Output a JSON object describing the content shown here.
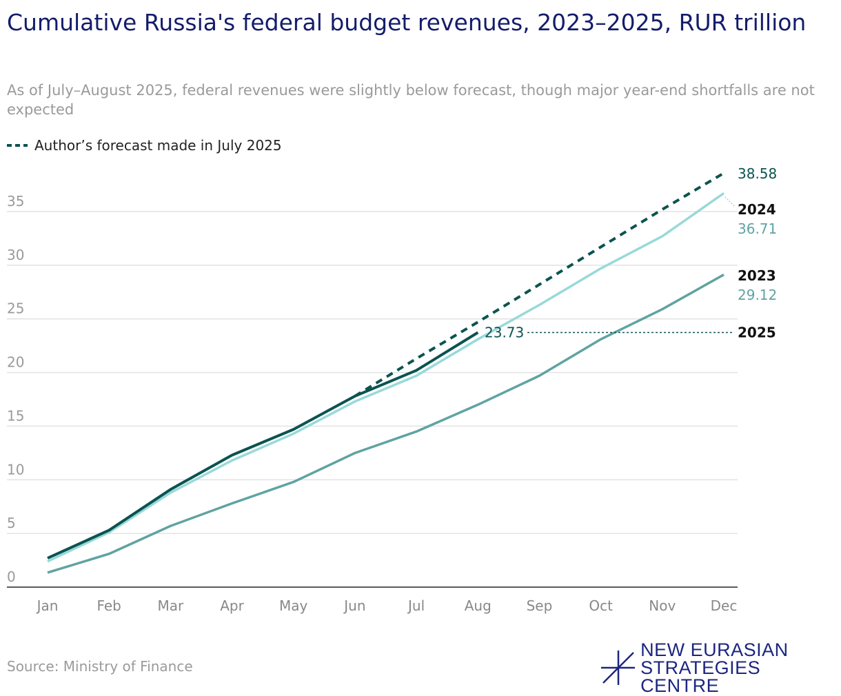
{
  "title": "Cumulative Russia's federal budget revenues, 2023–2025, RUR trillion",
  "subtitle": "As of July–August 2025, federal revenues were slightly below forecast, though major year-end shortfalls are not expected",
  "legend_label": "Author’s forecast made in July 2025",
  "source": "Source: Ministry of Finance",
  "logo": {
    "line1": "NEW EURASIAN",
    "line2": "STRATEGIES CENTRE"
  },
  "colors": {
    "s2025": "#0b5351",
    "s2024": "#98d9d9",
    "s2023": "#5fa3a1",
    "forecast": "#0b5351",
    "title": "#141c6b"
  },
  "chart_data": {
    "type": "line",
    "title": "Cumulative Russia's federal budget revenues, 2023–2025, RUR trillion",
    "categories": [
      "Jan",
      "Feb",
      "Mar",
      "Apr",
      "May",
      "Jun",
      "Jul",
      "Aug",
      "Sep",
      "Oct",
      "Nov",
      "Dec"
    ],
    "yticks": [
      "0",
      "5",
      "10",
      "15",
      "20",
      "25",
      "30",
      "35"
    ],
    "ylim": [
      0,
      35
    ],
    "series": [
      {
        "name": "2023",
        "values": [
          1.35,
          3.1,
          5.7,
          7.8,
          9.8,
          12.5,
          14.5,
          17.0,
          19.7,
          23.1,
          25.9,
          29.12
        ],
        "end_label": "29.12"
      },
      {
        "name": "2024",
        "values": [
          2.4,
          5.1,
          8.8,
          11.8,
          14.3,
          17.3,
          19.7,
          23.1,
          26.3,
          29.7,
          32.7,
          36.71
        ],
        "end_label": "36.71"
      },
      {
        "name": "2025",
        "values": [
          2.7,
          5.3,
          9.1,
          12.3,
          14.7,
          17.8,
          20.2,
          23.73,
          null,
          null,
          null,
          null
        ],
        "end_label": "23.73"
      },
      {
        "name": "Author’s forecast made in July 2025",
        "values": [
          null,
          null,
          null,
          null,
          null,
          17.8,
          21.3,
          24.7,
          28.2,
          31.7,
          35.2,
          38.58
        ],
        "end_label": "38.58"
      }
    ]
  }
}
